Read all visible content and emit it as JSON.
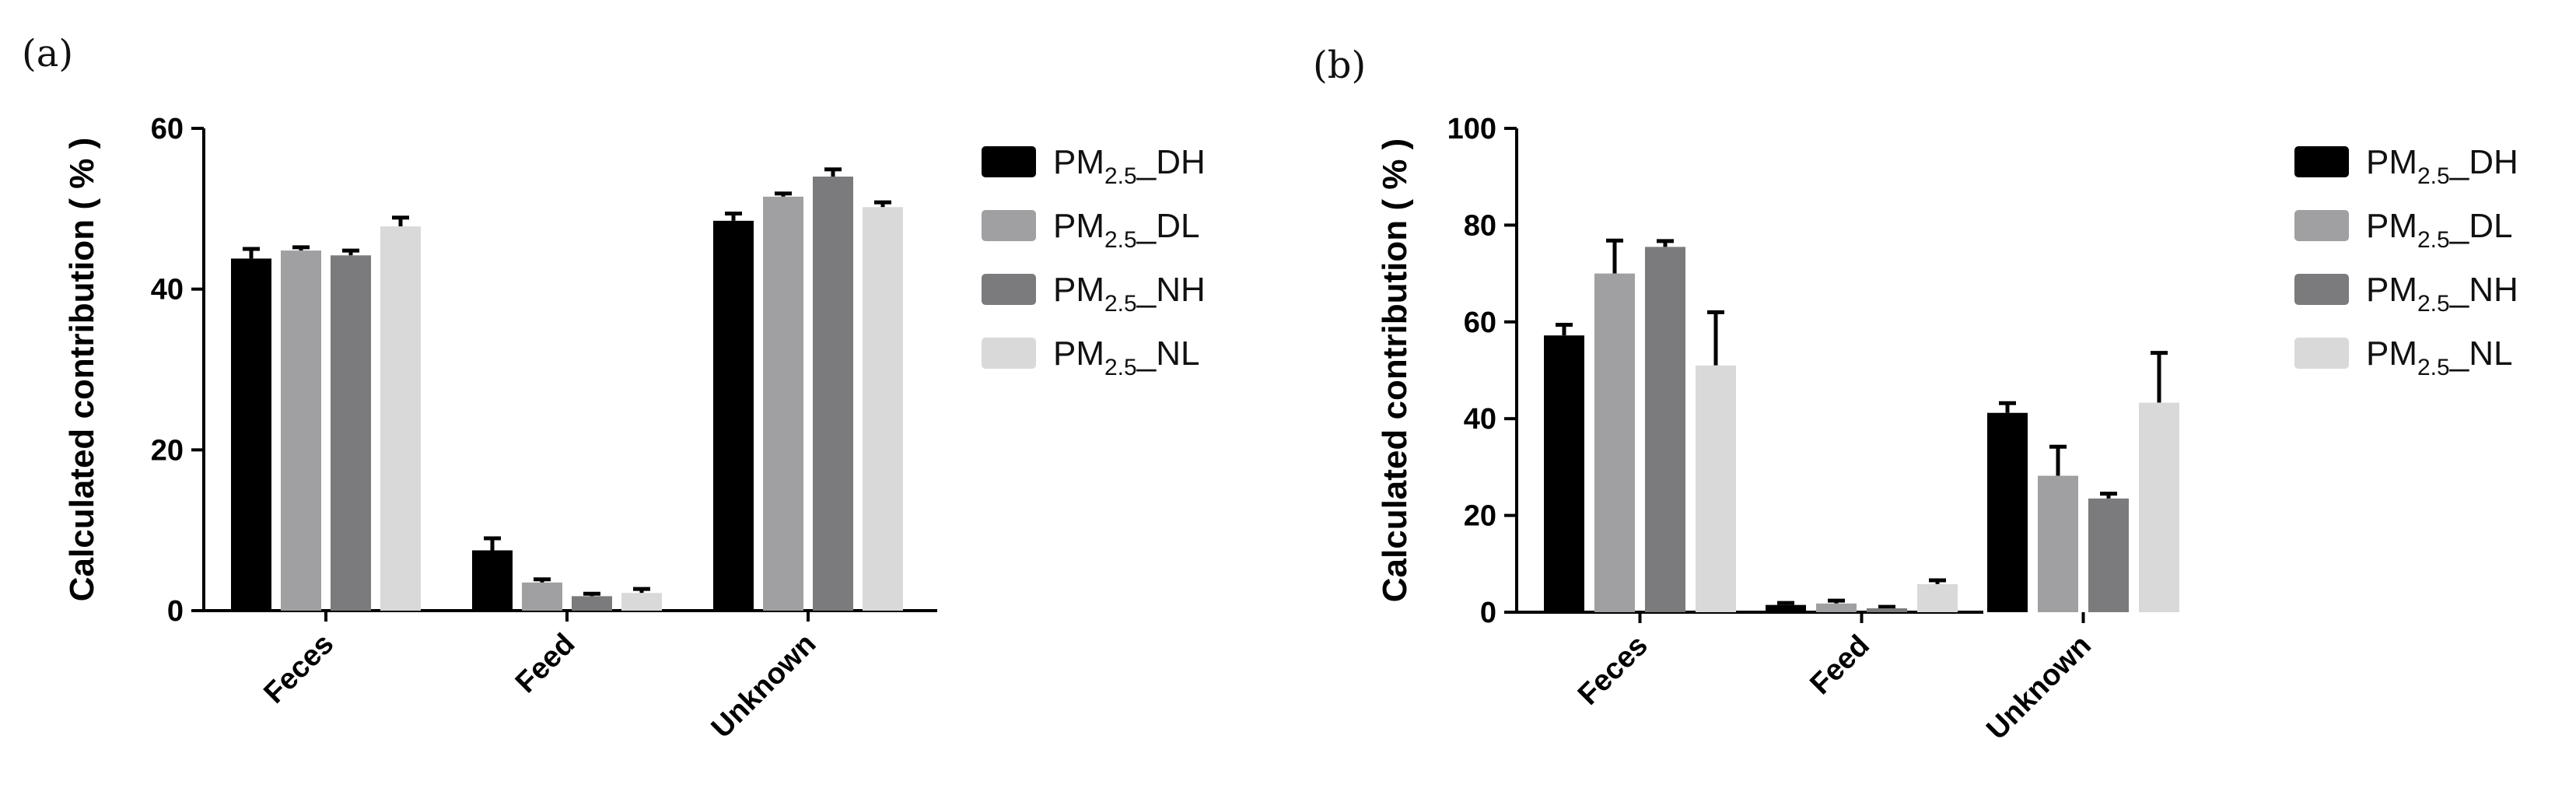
{
  "chart_data": [
    {
      "type": "bar",
      "panel": "(a)",
      "ylabel": "Calculated contribution ( % )",
      "ylim": [
        0,
        60
      ],
      "yticks": [
        0,
        20,
        40,
        60
      ],
      "categories": [
        "Feces",
        "Feed",
        "Unknown"
      ],
      "series": [
        {
          "name": "PM2.5_DH",
          "label_main": "PM",
          "label_sub": "2.5",
          "label_suffix": "_DH",
          "color": "#000000",
          "values": [
            43.8,
            7.5,
            48.5
          ],
          "errors": [
            1.2,
            1.5,
            0.9
          ]
        },
        {
          "name": "PM2.5_DL",
          "label_main": "PM",
          "label_sub": "2.5",
          "label_suffix": "_DL",
          "color": "#a0a0a3",
          "values": [
            44.8,
            3.5,
            51.5
          ],
          "errors": [
            0.4,
            0.4,
            0.4
          ]
        },
        {
          "name": "PM2.5_NH",
          "label_main": "PM",
          "label_sub": "2.5",
          "label_suffix": "_NH",
          "color": "#7b7b7d",
          "values": [
            44.2,
            1.8,
            54.0
          ],
          "errors": [
            0.6,
            0.3,
            0.9
          ]
        },
        {
          "name": "PM2.5_NL",
          "label_main": "PM",
          "label_sub": "2.5",
          "label_suffix": "_NL",
          "color": "#d9d9d9",
          "values": [
            47.8,
            2.2,
            50.2
          ],
          "errors": [
            1.1,
            0.5,
            0.6
          ]
        }
      ]
    },
    {
      "type": "bar",
      "panel": "(b)",
      "ylabel": "Calculated contribution ( % )",
      "ylim": [
        0,
        100
      ],
      "yticks": [
        0,
        20,
        40,
        60,
        80,
        100
      ],
      "categories": [
        "Feces",
        "Feed",
        "Unknown"
      ],
      "series": [
        {
          "name": "PM2.5_DH",
          "label_main": "PM",
          "label_sub": "2.5",
          "label_suffix": "_DH",
          "color": "#000000",
          "values": [
            57.2,
            1.5,
            41.2
          ],
          "errors": [
            2.2,
            0.4,
            2.0
          ]
        },
        {
          "name": "PM2.5_DL",
          "label_main": "PM",
          "label_sub": "2.5",
          "label_suffix": "_DL",
          "color": "#a0a0a3",
          "values": [
            70.0,
            1.8,
            28.2
          ],
          "errors": [
            6.8,
            0.6,
            6.0
          ]
        },
        {
          "name": "PM2.5_NH",
          "label_main": "PM",
          "label_sub": "2.5",
          "label_suffix": "_NH",
          "color": "#7b7b7d",
          "values": [
            75.5,
            0.8,
            23.5
          ],
          "errors": [
            1.2,
            0.3,
            1.0
          ]
        },
        {
          "name": "PM2.5_NL",
          "label_main": "PM",
          "label_sub": "2.5",
          "label_suffix": "_NL",
          "color": "#d9d9d9",
          "values": [
            51.0,
            5.8,
            43.3
          ],
          "errors": [
            11.0,
            0.8,
            10.3
          ]
        }
      ]
    }
  ]
}
